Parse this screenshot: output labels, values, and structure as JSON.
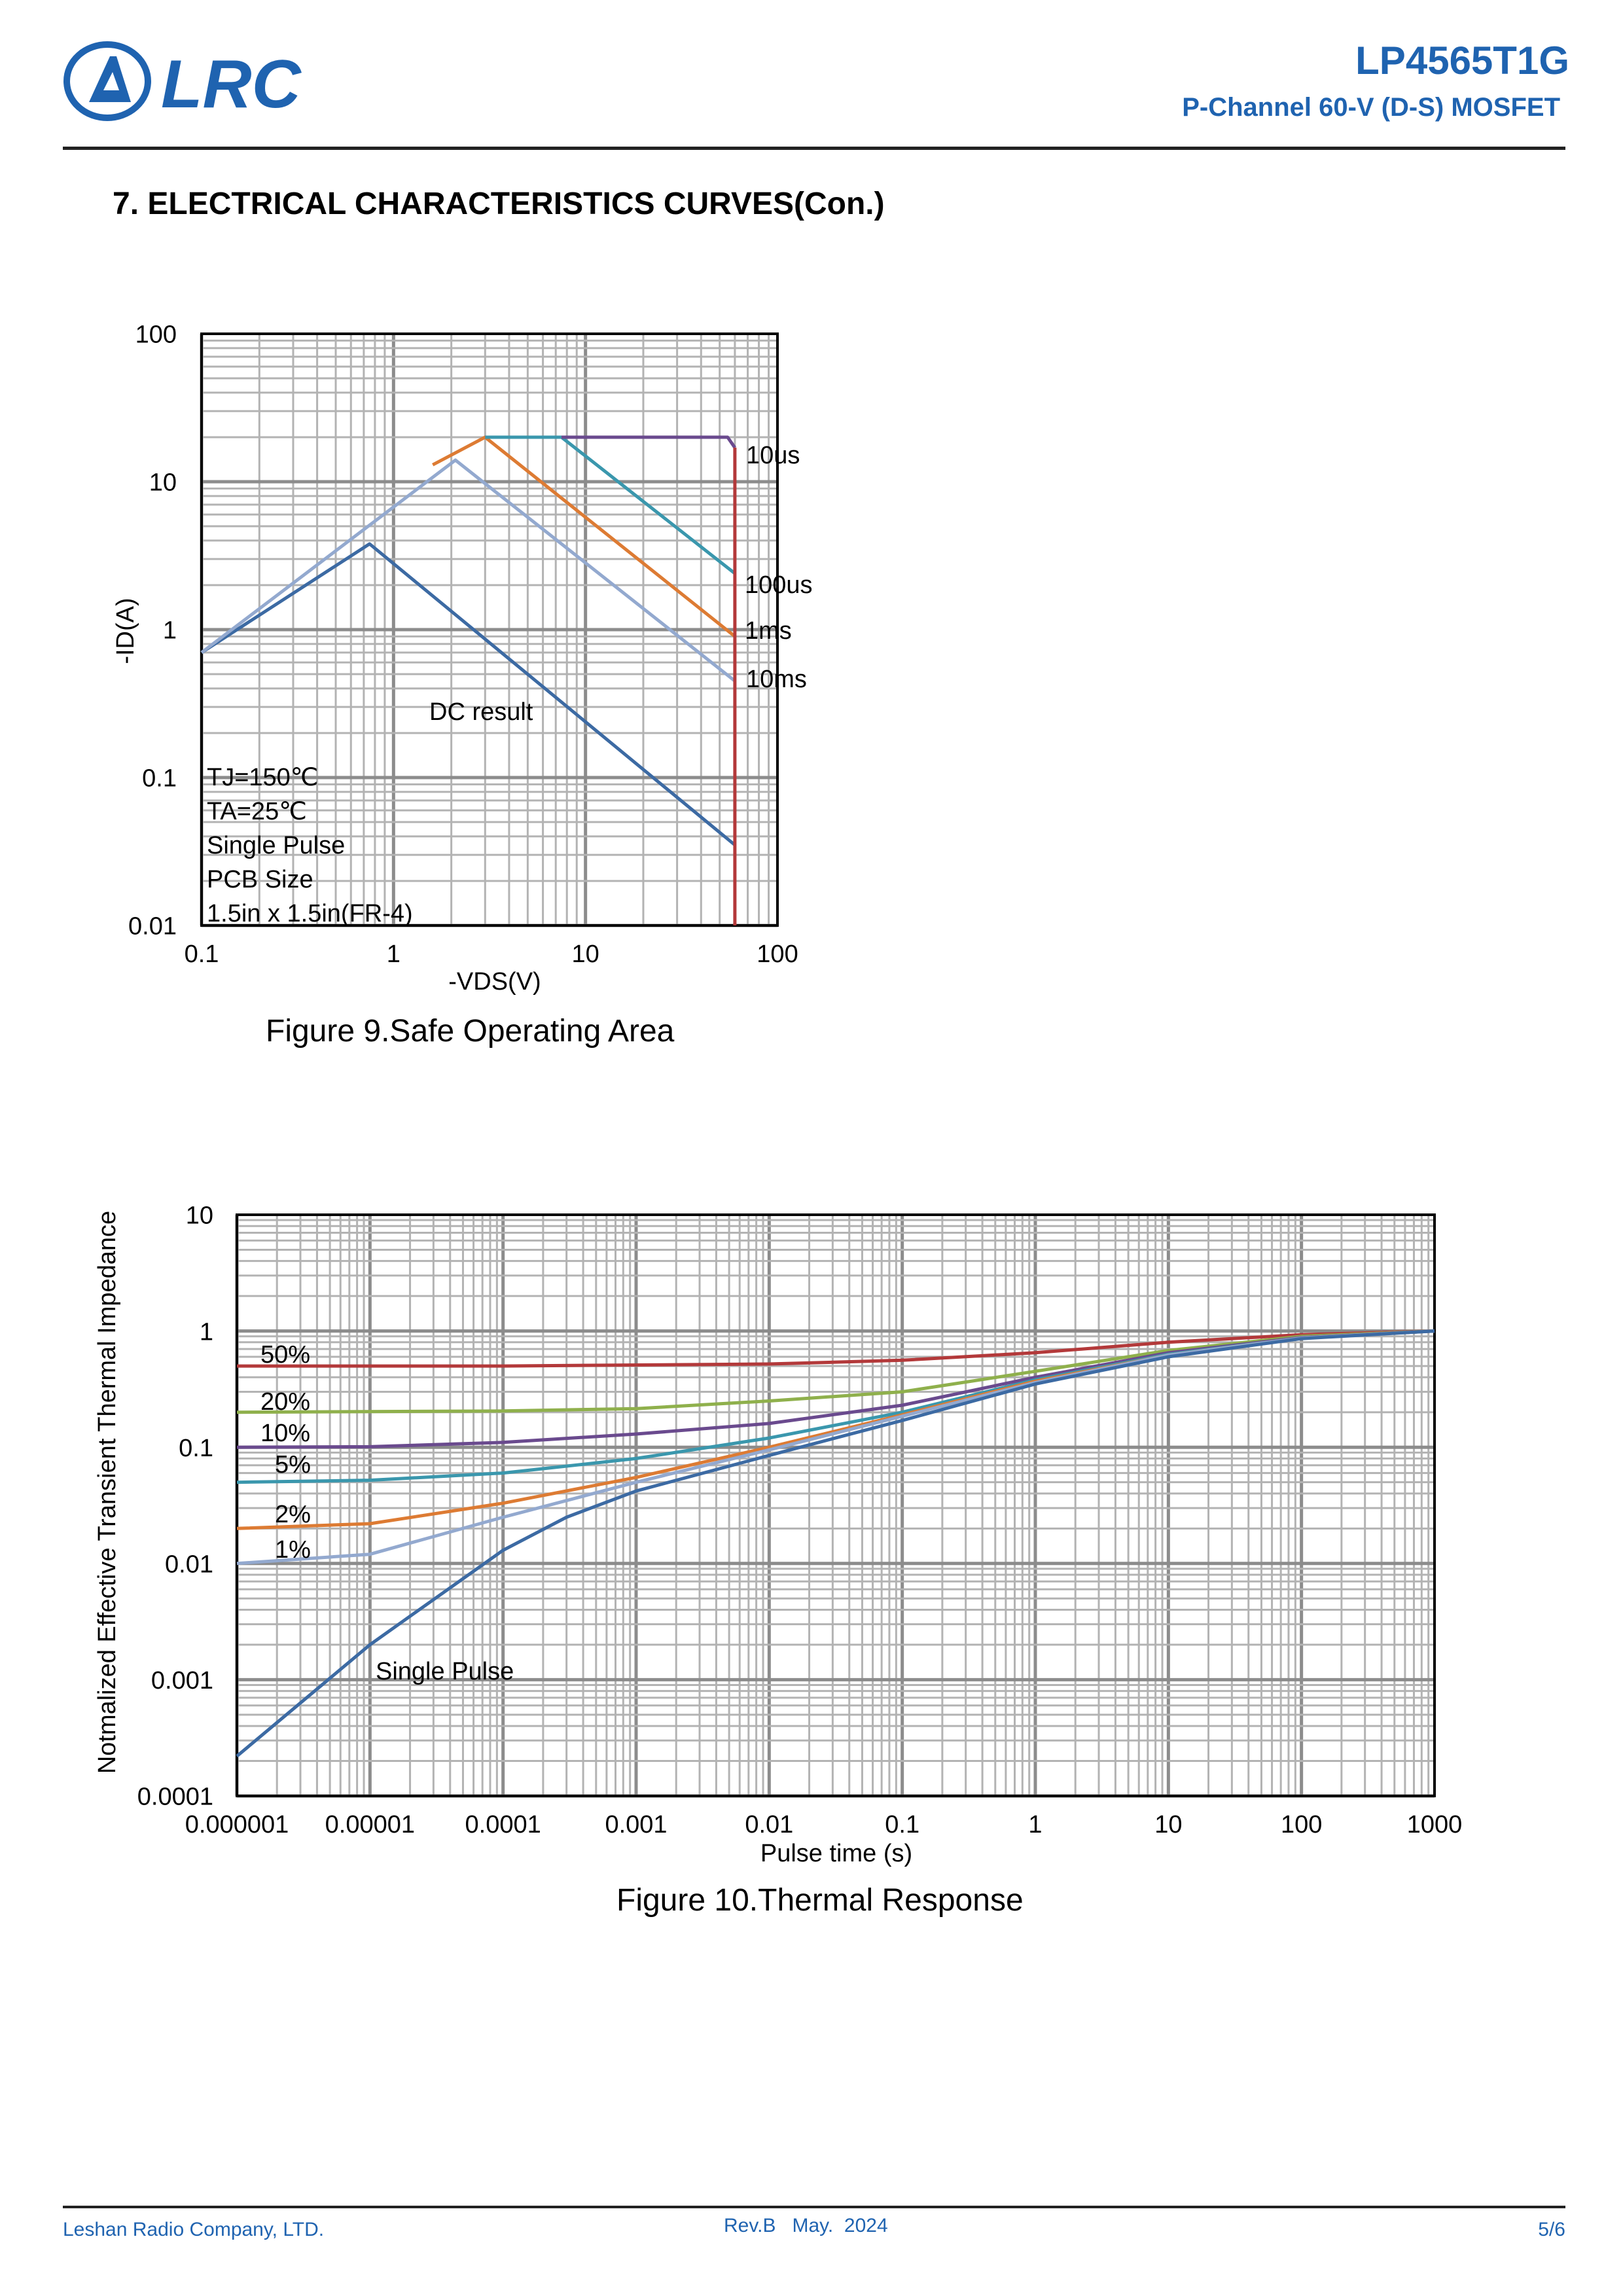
{
  "header": {
    "logo_text": "LRC",
    "part_number": "LP4565T1G",
    "subtitle": "P-Channel 60-V (D-S) MOSFET"
  },
  "section_title": "7. ELECTRICAL CHARACTERISTICS CURVES(Con.)",
  "figures": [
    {
      "caption": "Figure 9.Safe Operating Area"
    },
    {
      "caption": "Figure 10.Thermal Response"
    }
  ],
  "colors": {
    "brand": "#1f63b0",
    "grid": "#a6a6a6",
    "dc": "#3c6aa3",
    "10ms": "#93a9cf",
    "1ms": "#dd7b33",
    "100us": "#3a97ad",
    "10us": "#6a4a8e",
    "limit": "#b3393a",
    "d50": "#b3393a",
    "d20": "#8fb04c",
    "d10": "#6a4a8e",
    "d5": "#3a97ad",
    "d2": "#dd7b33",
    "d1": "#93a9cf",
    "single": "#3c6aa3"
  },
  "chart_data": [
    {
      "type": "line",
      "title": "Figure 9.Safe Operating Area",
      "xlabel": "-VDS(V)",
      "ylabel": "-ID(A)",
      "x_scale": "log",
      "y_scale": "log",
      "xlim": [
        0.1,
        100
      ],
      "ylim": [
        0.01,
        100
      ],
      "x_ticks": [
        "0.1",
        "1",
        "10",
        "100"
      ],
      "y_ticks": [
        "0.01",
        "0.1",
        "1",
        "10",
        "100"
      ],
      "grid": true,
      "conditions": [
        "TJ=150℃",
        "TA=25℃",
        "Single Pulse",
        "PCB Size",
        "1.5in x 1.5in(FR-4)"
      ],
      "series": [
        {
          "name": "DC result",
          "key": "dc",
          "points": [
            [
              0.1,
              0.7
            ],
            [
              0.75,
              3.8
            ],
            [
              60,
              0.035
            ]
          ]
        },
        {
          "name": "10ms",
          "key": "10ms",
          "points": [
            [
              0.1,
              0.7
            ],
            [
              2.1,
              14
            ],
            [
              60,
              0.45
            ]
          ]
        },
        {
          "name": "1ms",
          "key": "1ms",
          "points": [
            [
              1.6,
              13
            ],
            [
              3.0,
              20
            ],
            [
              60,
              0.9
            ]
          ]
        },
        {
          "name": "100us",
          "key": "100us",
          "points": [
            [
              3.0,
              20
            ],
            [
              7.5,
              20
            ],
            [
              60,
              2.4
            ]
          ]
        },
        {
          "name": "10us",
          "key": "10us",
          "points": [
            [
              7.5,
              20
            ],
            [
              55,
              20
            ],
            [
              60,
              17
            ]
          ]
        },
        {
          "key": "limit",
          "points": [
            [
              60,
              17
            ],
            [
              60,
              0.01
            ]
          ]
        }
      ]
    },
    {
      "type": "line",
      "title": "Figure 10.Thermal Response",
      "xlabel": "Pulse time (s)",
      "ylabel": "Notmalized Effective Transient Thermal Impedance",
      "x_scale": "log",
      "y_scale": "log",
      "xlim": [
        1e-06,
        1000
      ],
      "ylim": [
        0.0001,
        10
      ],
      "x_ticks": [
        "0.000001",
        "0.00001",
        "0.0001",
        "0.001",
        "0.01",
        "0.1",
        "1",
        "10",
        "100",
        "1000"
      ],
      "y_ticks": [
        "0.0001",
        "0.001",
        "0.01",
        "0.1",
        "1",
        "10"
      ],
      "grid": true,
      "series": [
        {
          "name": "50%",
          "key": "d50",
          "points": [
            [
              1e-06,
              0.5
            ],
            [
              0.0001,
              0.5
            ],
            [
              0.01,
              0.52
            ],
            [
              0.1,
              0.56
            ],
            [
              1,
              0.65
            ],
            [
              10,
              0.8
            ],
            [
              100,
              0.93
            ],
            [
              1000,
              1.0
            ]
          ]
        },
        {
          "name": "20%",
          "key": "d20",
          "points": [
            [
              1e-06,
              0.2
            ],
            [
              0.0001,
              0.205
            ],
            [
              0.001,
              0.215
            ],
            [
              0.01,
              0.25
            ],
            [
              0.1,
              0.3
            ],
            [
              1,
              0.45
            ],
            [
              10,
              0.68
            ],
            [
              100,
              0.9
            ],
            [
              1000,
              1.0
            ]
          ]
        },
        {
          "name": "10%",
          "key": "d10",
          "points": [
            [
              1e-06,
              0.1
            ],
            [
              1e-05,
              0.101
            ],
            [
              0.0001,
              0.11
            ],
            [
              0.001,
              0.13
            ],
            [
              0.01,
              0.16
            ],
            [
              0.1,
              0.23
            ],
            [
              1,
              0.4
            ],
            [
              10,
              0.65
            ],
            [
              100,
              0.88
            ],
            [
              1000,
              1.0
            ]
          ]
        },
        {
          "name": "5%",
          "key": "d5",
          "points": [
            [
              1e-06,
              0.05
            ],
            [
              1e-05,
              0.052
            ],
            [
              0.0001,
              0.06
            ],
            [
              0.001,
              0.08
            ],
            [
              0.01,
              0.12
            ],
            [
              0.1,
              0.2
            ],
            [
              1,
              0.38
            ],
            [
              10,
              0.63
            ],
            [
              100,
              0.87
            ],
            [
              1000,
              1.0
            ]
          ]
        },
        {
          "name": "2%",
          "key": "d2",
          "points": [
            [
              1e-06,
              0.02
            ],
            [
              1e-05,
              0.022
            ],
            [
              0.0001,
              0.033
            ],
            [
              0.001,
              0.055
            ],
            [
              0.01,
              0.1
            ],
            [
              0.1,
              0.19
            ],
            [
              1,
              0.37
            ],
            [
              10,
              0.62
            ],
            [
              100,
              0.87
            ],
            [
              1000,
              1.0
            ]
          ]
        },
        {
          "name": "1%",
          "key": "d1",
          "points": [
            [
              1e-06,
              0.01
            ],
            [
              1e-05,
              0.012
            ],
            [
              0.0001,
              0.025
            ],
            [
              0.001,
              0.05
            ],
            [
              0.01,
              0.095
            ],
            [
              0.1,
              0.185
            ],
            [
              1,
              0.36
            ],
            [
              10,
              0.62
            ],
            [
              100,
              0.87
            ],
            [
              1000,
              1.0
            ]
          ]
        },
        {
          "name": "Single Pulse",
          "key": "single",
          "points": [
            [
              1e-06,
              0.00022
            ],
            [
              1e-05,
              0.002
            ],
            [
              0.0001,
              0.013
            ],
            [
              0.0003,
              0.025
            ],
            [
              0.001,
              0.042
            ],
            [
              0.01,
              0.085
            ],
            [
              0.1,
              0.17
            ],
            [
              1,
              0.35
            ],
            [
              10,
              0.6
            ],
            [
              100,
              0.86
            ],
            [
              1000,
              1.0
            ]
          ]
        }
      ]
    }
  ],
  "footer": {
    "company": "Leshan Radio Company, LTD.",
    "revision": "Rev.B   May.  2024",
    "page": "5/6"
  }
}
